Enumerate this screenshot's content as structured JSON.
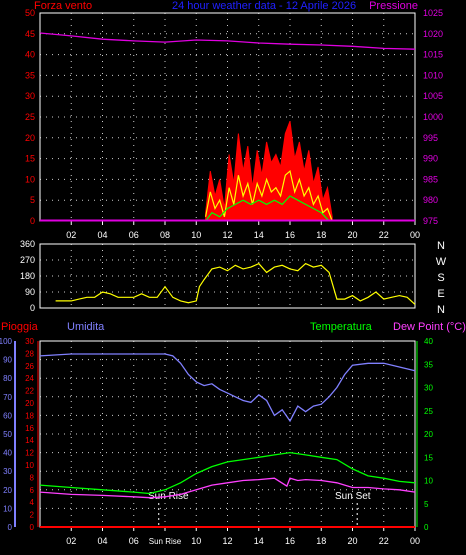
{
  "colors": {
    "background": "#000000",
    "axis": "#ffffff",
    "grid": "#ffffff",
    "wind": "#ff0000",
    "wind_gust": "#ffff00",
    "wind_avg": "#00ff00",
    "pressure": "#e000e0",
    "title": "#2020ff",
    "direction": "#ffff00",
    "rain": "#ff0000",
    "humidity": "#8080ff",
    "temperature": "#00ff00",
    "dewpoint": "#ff40ff",
    "sun_marker": "#ffffff"
  },
  "chart_data": [
    {
      "type": "area",
      "title": "24 hour weather data - 12 Aprile 2026",
      "ylabel": "Forza vento",
      "y2label": "Pressione",
      "ylim": [
        0,
        50
      ],
      "y2lim": [
        975,
        1025
      ],
      "yticks": [
        "0",
        "5",
        "10",
        "15",
        "20",
        "25",
        "30",
        "35",
        "40",
        "45",
        "50"
      ],
      "y2ticks": [
        "975",
        "980",
        "985",
        "990",
        "995",
        "1000",
        "1005",
        "1010",
        "1015",
        "1020",
        "1025"
      ],
      "xticks": [
        "02",
        "04",
        "06",
        "08",
        "10",
        "12",
        "14",
        "16",
        "18",
        "20",
        "22",
        "00"
      ],
      "grid": true,
      "series": [
        {
          "name": "Pressione",
          "x": [
            0,
            2,
            4,
            6,
            8,
            10,
            12,
            14,
            16,
            18,
            20,
            22,
            24
          ],
          "values": [
            1020.2,
            1019.5,
            1018.7,
            1018.3,
            1018.0,
            1018.5,
            1018.3,
            1017.8,
            1017.5,
            1017.3,
            1017.0,
            1016.5,
            1016.3
          ]
        },
        {
          "x": [
            10.6,
            10.9,
            11.2,
            11.5,
            11.8,
            12.1,
            12.4,
            12.7,
            13.0,
            13.3,
            13.6,
            13.9,
            14.2,
            14.5,
            14.8,
            15.1,
            15.4,
            15.7,
            16.0,
            16.3,
            16.6,
            16.9,
            17.2,
            17.5,
            17.8,
            18.1,
            18.4,
            18.7
          ],
          "values": [
            2,
            12,
            6,
            10,
            3,
            16,
            9,
            21,
            12,
            18,
            8,
            17,
            11,
            19,
            14,
            16,
            13,
            21,
            24,
            15,
            19,
            12,
            17,
            9,
            13,
            5,
            8,
            1
          ]
        },
        {
          "x": [
            10.6,
            10.9,
            11.2,
            11.5,
            11.8,
            12.1,
            12.4,
            12.7,
            13.0,
            13.3,
            13.6,
            13.9,
            14.2,
            14.5,
            14.8,
            15.1,
            15.4,
            15.7,
            16.0,
            16.3,
            16.6,
            16.9,
            17.2,
            17.5,
            17.8,
            18.1,
            18.4,
            18.7
          ],
          "values": [
            1,
            7,
            3,
            5,
            1,
            8,
            4,
            11,
            6,
            9,
            4,
            9,
            6,
            10,
            7,
            8,
            6,
            11,
            12,
            7,
            10,
            6,
            8,
            4,
            6,
            2,
            3,
            0
          ]
        },
        {
          "x": [
            10.6,
            11.0,
            11.5,
            12.0,
            12.5,
            13.0,
            13.5,
            14.0,
            14.5,
            15.0,
            15.5,
            16.0,
            16.5,
            17.0,
            17.5,
            18.0,
            18.5
          ],
          "values": [
            0,
            2,
            1,
            3,
            4,
            5,
            4,
            5,
            4,
            5,
            4,
            6,
            5,
            4,
            3,
            2,
            0
          ]
        }
      ]
    },
    {
      "type": "line",
      "ylim": [
        0,
        360
      ],
      "yticks": [
        "0",
        "90",
        "180",
        "270",
        "360"
      ],
      "direction_labels": [
        "N",
        "W",
        "S",
        "E",
        "N"
      ],
      "xticks": [
        "02",
        "04",
        "06",
        "08",
        "10",
        "12",
        "14",
        "16",
        "18",
        "20",
        "22",
        "00"
      ],
      "grid": true,
      "x": [
        1,
        2,
        2.5,
        3,
        3.5,
        4,
        4.5,
        5,
        5.5,
        6,
        6.5,
        7,
        7.5,
        8,
        8.5,
        9,
        9.5,
        10,
        10.2,
        10.5,
        11,
        11.5,
        12,
        12.5,
        13,
        13.5,
        14,
        14.5,
        15,
        15.5,
        16,
        16.5,
        17,
        17.5,
        18,
        18.5,
        19,
        19.5,
        20,
        20.5,
        21,
        21.5,
        22,
        22.5,
        23,
        23.5,
        24
      ],
      "values": [
        40,
        40,
        50,
        60,
        60,
        90,
        80,
        60,
        60,
        60,
        80,
        60,
        60,
        120,
        60,
        40,
        30,
        40,
        120,
        160,
        220,
        230,
        210,
        240,
        220,
        230,
        250,
        200,
        230,
        240,
        220,
        210,
        250,
        230,
        240,
        200,
        50,
        50,
        70,
        40,
        60,
        90,
        50,
        60,
        70,
        60,
        20
      ]
    },
    {
      "type": "line",
      "ylabel": "Pioggia",
      "y2label": "Umidita",
      "y3label": "Temperatura",
      "y4label": "Dew Point (°C)",
      "rain_ticks": [
        "0",
        "2",
        "4",
        "6",
        "8",
        "10",
        "12",
        "14",
        "16",
        "18",
        "20",
        "22",
        "24",
        "26",
        "28",
        "30"
      ],
      "humidity_ticks": [
        "0",
        "10",
        "20",
        "30",
        "40",
        "50",
        "60",
        "70",
        "80",
        "90",
        "100"
      ],
      "temp_ticks": [
        "0",
        "5",
        "10",
        "15",
        "20",
        "25",
        "30",
        "35",
        "40"
      ],
      "xticks": [
        "02",
        "04",
        "06",
        "Sun Rise",
        "10",
        "12",
        "14",
        "16",
        "18",
        "20",
        "22",
        "00"
      ],
      "annotations": [
        "Sun Rise",
        "Sun Set"
      ],
      "sunrise": 7.6,
      "sunset": 20.3,
      "grid": true,
      "series": [
        {
          "name": "Umidita",
          "x": [
            0,
            2,
            4,
            6,
            7,
            8,
            8.5,
            9,
            9.5,
            10,
            10.5,
            11,
            11.5,
            12,
            12.5,
            13,
            13.5,
            14,
            14.5,
            15,
            15.5,
            16,
            16.5,
            17,
            17.5,
            18,
            18.5,
            19,
            19.5,
            20,
            21,
            22,
            23,
            24
          ],
          "values": [
            92,
            93,
            93,
            93,
            93,
            93,
            92,
            88,
            82,
            78,
            76,
            77,
            74,
            72,
            70,
            68,
            67,
            71,
            68,
            60,
            63,
            57,
            65,
            62,
            65,
            66,
            70,
            75,
            82,
            87,
            88,
            88,
            86,
            84
          ]
        },
        {
          "name": "Temperatura",
          "x": [
            0,
            2,
            4,
            6,
            7,
            8,
            9,
            10,
            11,
            12,
            13,
            14,
            15,
            16,
            17,
            18,
            19,
            20,
            21,
            22,
            23,
            24
          ],
          "values": [
            9,
            8.5,
            8,
            7.5,
            7.2,
            8,
            9.5,
            11.5,
            13,
            14,
            14.5,
            15,
            15.5,
            16,
            15.5,
            15,
            14.5,
            12.5,
            11,
            10.5,
            9.8,
            9.5
          ]
        },
        {
          "name": "Dew Point (°C)",
          "x": [
            0,
            2,
            4,
            6,
            7,
            8,
            9,
            10,
            11,
            12,
            13,
            14,
            15,
            15.8,
            16,
            16.5,
            17,
            18,
            19,
            20,
            21,
            22,
            23,
            24
          ],
          "values": [
            7.5,
            7,
            6.8,
            6.5,
            6.3,
            6.5,
            7,
            8,
            9,
            9.5,
            10,
            10.2,
            10.5,
            8.8,
            10.5,
            10,
            10.2,
            10,
            9.5,
            8.5,
            8.5,
            8.2,
            8,
            7.5
          ]
        },
        {
          "name": "Pioggia",
          "x": [
            0,
            24
          ],
          "values": [
            0,
            0
          ]
        }
      ]
    }
  ]
}
